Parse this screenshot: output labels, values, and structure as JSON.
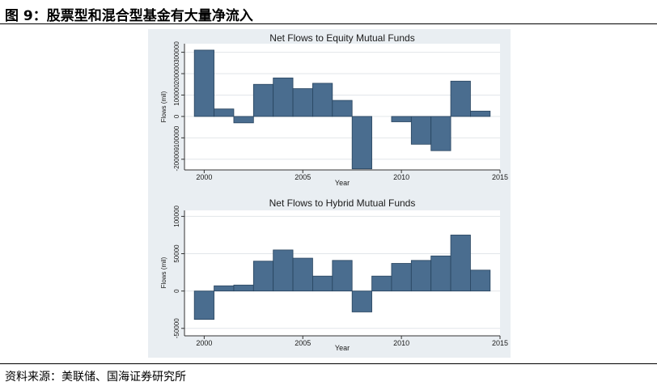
{
  "figure": {
    "title": "图 9：股票型和混合型基金有大量净流入",
    "source": "资料来源：美联储、国海证券研究所"
  },
  "colors": {
    "bar": "#4a6d8f",
    "panel_bg": "#e9eef2",
    "plot_bg": "#ffffff",
    "grid": "#e2e6ea"
  },
  "chart_data": [
    {
      "type": "bar",
      "title": "Net Flows to Equity Mutual Funds",
      "xlabel": "Year",
      "ylabel": "Flows (mil)",
      "x": [
        2000,
        2001,
        2002,
        2003,
        2004,
        2005,
        2006,
        2007,
        2008,
        2009,
        2010,
        2011,
        2012,
        2013,
        2014
      ],
      "values": [
        310000,
        35000,
        -30000,
        150000,
        180000,
        130000,
        155000,
        75000,
        -245000,
        0,
        -25000,
        -130000,
        -160000,
        165000,
        25000
      ],
      "xlim": [
        1999,
        2015
      ],
      "ylim": [
        -250000,
        340000
      ],
      "xticks": [
        2000,
        2005,
        2010,
        2015
      ],
      "xtick_labels": [
        "2000",
        "2005",
        "2010",
        "2015"
      ],
      "yticks": [
        -200000,
        -100000,
        0,
        100000,
        200000,
        300000
      ],
      "ytick_labels": [
        "-200000",
        "-100000",
        "0",
        "100000",
        "200000",
        "300000"
      ],
      "grid": true,
      "legend": "none"
    },
    {
      "type": "bar",
      "title": "Net Flows to Hybrid Mutual Funds",
      "xlabel": "Year",
      "ylabel": "Flows (mil)",
      "x": [
        2000,
        2001,
        2002,
        2003,
        2004,
        2005,
        2006,
        2007,
        2008,
        2009,
        2010,
        2011,
        2012,
        2013,
        2014
      ],
      "values": [
        -38000,
        7000,
        8000,
        40000,
        55000,
        44000,
        20000,
        41000,
        -28000,
        20000,
        37000,
        41000,
        47000,
        75000,
        28000
      ],
      "xlim": [
        1999,
        2015
      ],
      "ylim": [
        -60000,
        108000
      ],
      "xticks": [
        2000,
        2005,
        2010,
        2015
      ],
      "xtick_labels": [
        "2000",
        "2005",
        "2010",
        "2015"
      ],
      "yticks": [
        -50000,
        0,
        50000,
        100000
      ],
      "ytick_labels": [
        "-50000",
        "0",
        "50000",
        "100000"
      ],
      "grid": true,
      "legend": "none"
    }
  ]
}
